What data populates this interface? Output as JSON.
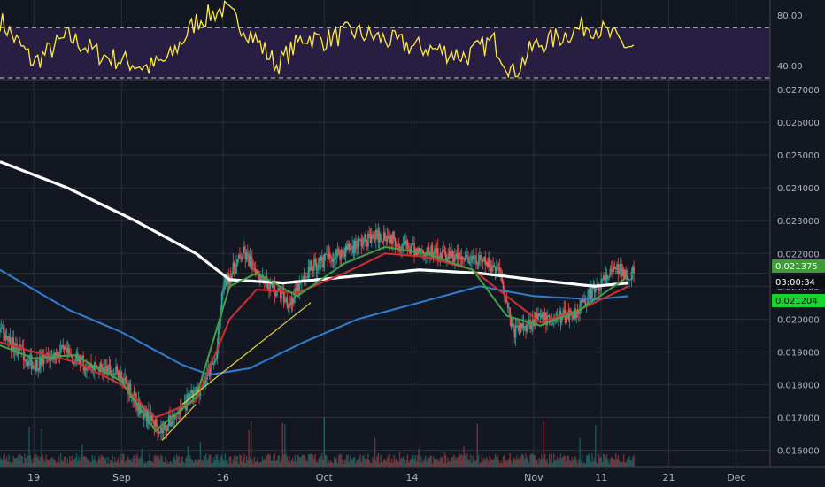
{
  "colors": {
    "background": "#131722",
    "grid": "#2a2e39",
    "axis_text": "#b2b5be",
    "up": "#26a69a",
    "down": "#ef5350",
    "rsi_line": "#ffeb3b",
    "rsi_band": "#2a1f45",
    "ma_white": "#ffffff",
    "ma_blue": "#2f7fd1",
    "ma_red": "#d32f2f",
    "ma_green": "#43a047",
    "horizontal_line": "#6fd63a",
    "trendline": "#e6d33a",
    "price_tag": "#3f9a3a",
    "countdown_tag": "#0b0d12",
    "level_tag": "#16d62c"
  },
  "chart_data": [
    {
      "type": "line",
      "panel": "rsi",
      "ylim": [
        30,
        92
      ],
      "yticks": [
        "80.00",
        "40.00"
      ],
      "y_tick_values": [
        80,
        40
      ],
      "bands": [
        70,
        30
      ],
      "x": [
        "Aug 14",
        "Aug 19",
        "Aug 24",
        "Aug 29",
        "Sep 1",
        "Sep 5",
        "Sep 8",
        "Sep 12",
        "Sep 16",
        "Sep 20",
        "Sep 24",
        "Sep 28",
        "Oct 1",
        "Oct 5",
        "Oct 9",
        "Oct 14",
        "Oct 18",
        "Oct 22",
        "Oct 26",
        "Oct 29",
        "Nov 1",
        "Nov 5",
        "Nov 9",
        "Nov 11",
        "Nov 15"
      ],
      "series": [
        {
          "values": [
            76,
            42,
            63,
            48,
            44,
            38,
            45,
            75,
            85,
            66,
            40,
            63,
            60,
            67,
            62,
            55,
            52,
            47,
            60,
            33,
            55,
            63,
            72,
            68,
            55
          ]
        }
      ]
    },
    {
      "type": "candlestick",
      "panel": "price",
      "ylim": [
        0.0155,
        0.0273
      ],
      "yticks": [
        "0.027000",
        "0.026000",
        "0.025000",
        "0.024000",
        "0.023000",
        "0.022000",
        "0.021000",
        "0.020000",
        "0.019000",
        "0.018000",
        "0.017000",
        "0.016000"
      ],
      "y_tick_values": [
        0.027,
        0.026,
        0.025,
        0.024,
        0.023,
        0.022,
        0.021,
        0.02,
        0.019,
        0.018,
        0.017,
        0.016
      ],
      "xtick_labels": [
        "19",
        "Sep",
        "16",
        "Oct",
        "14",
        "Nov",
        "11",
        "21",
        "Dec"
      ],
      "xtick_dates": [
        "Aug 19",
        "Sep 1",
        "Sep 16",
        "Oct 1",
        "Oct 14",
        "Nov 1",
        "Nov 11",
        "Nov 21",
        "Dec 1"
      ],
      "close_path": {
        "dates": [
          "Aug 14",
          "Aug 19",
          "Aug 23",
          "Aug 27",
          "Sep 1",
          "Sep 4",
          "Sep 7",
          "Sep 10",
          "Sep 13",
          "Sep 15",
          "Sep 16",
          "Sep 19",
          "Sep 23",
          "Sep 26",
          "Sep 29",
          "Oct 3",
          "Oct 7",
          "Oct 10",
          "Oct 14",
          "Oct 18",
          "Oct 22",
          "Oct 25",
          "Oct 27",
          "Oct 29",
          "Nov 1",
          "Nov 4",
          "Nov 7",
          "Nov 10",
          "Nov 13",
          "Nov 15"
        ],
        "values": [
          0.0196,
          0.0186,
          0.019,
          0.0186,
          0.0183,
          0.0172,
          0.0166,
          0.0173,
          0.018,
          0.0188,
          0.021,
          0.022,
          0.021,
          0.0205,
          0.0216,
          0.022,
          0.0224,
          0.0226,
          0.0221,
          0.022,
          0.0218,
          0.0217,
          0.0215,
          0.0196,
          0.02,
          0.02,
          0.0202,
          0.0209,
          0.0215,
          0.0214
        ]
      },
      "current_price": "0.021375",
      "countdown": "03:00:34",
      "marked_level": "0.021204",
      "horizontal_level": 0.021375,
      "moving_averages": [
        {
          "color_key": "ma_white",
          "dates": [
            "Aug 14",
            "Aug 24",
            "Sep 3",
            "Sep 12",
            "Sep 17",
            "Sep 25",
            "Oct 5",
            "Oct 15",
            "Oct 24",
            "Nov 1",
            "Nov 10",
            "Nov 15"
          ],
          "values": [
            0.0248,
            0.024,
            0.023,
            0.022,
            0.0212,
            0.0211,
            0.0213,
            0.0215,
            0.0214,
            0.0212,
            0.021,
            0.0211
          ]
        },
        {
          "color_key": "ma_blue",
          "dates": [
            "Aug 14",
            "Aug 24",
            "Sep 1",
            "Sep 10",
            "Sep 14",
            "Sep 20",
            "Sep 28",
            "Oct 6",
            "Oct 15",
            "Oct 24",
            "Nov 1",
            "Nov 10",
            "Nov 15"
          ],
          "values": [
            0.0215,
            0.0203,
            0.0196,
            0.0186,
            0.0183,
            0.0185,
            0.0193,
            0.02,
            0.0205,
            0.021,
            0.0207,
            0.0206,
            0.0207
          ]
        },
        {
          "color_key": "ma_red",
          "dates": [
            "Aug 14",
            "Aug 19",
            "Aug 25",
            "Sep 1",
            "Sep 6",
            "Sep 12",
            "Sep 17",
            "Sep 21",
            "Sep 27",
            "Oct 4",
            "Oct 10",
            "Oct 16",
            "Oct 23",
            "Oct 28",
            "Nov 2",
            "Nov 8",
            "Nov 15"
          ],
          "values": [
            0.0193,
            0.019,
            0.0187,
            0.018,
            0.017,
            0.0175,
            0.02,
            0.0209,
            0.0208,
            0.0214,
            0.022,
            0.0219,
            0.0215,
            0.0207,
            0.0199,
            0.0203,
            0.021
          ]
        },
        {
          "color_key": "ma_green",
          "dates": [
            "Aug 14",
            "Aug 19",
            "Aug 25",
            "Sep 1",
            "Sep 6",
            "Sep 12",
            "Sep 17",
            "Sep 21",
            "Sep 27",
            "Oct 4",
            "Oct 10",
            "Oct 16",
            "Oct 23",
            "Oct 28",
            "Nov 2",
            "Nov 8",
            "Nov 15"
          ],
          "values": [
            0.0192,
            0.0188,
            0.0189,
            0.0181,
            0.0166,
            0.0176,
            0.021,
            0.0214,
            0.0207,
            0.0217,
            0.0222,
            0.022,
            0.0215,
            0.0201,
            0.0198,
            0.0203,
            0.0213
          ]
        }
      ],
      "trendlines": [
        {
          "dates": [
            "Sep 7",
            "Sep 12"
          ],
          "values": [
            0.0163,
            0.0174
          ]
        },
        {
          "dates": [
            "Sep 10",
            "Sep 29"
          ],
          "values": [
            0.0174,
            0.0205
          ]
        }
      ]
    },
    {
      "type": "bar",
      "panel": "volume",
      "note_colors_by_direction": true
    }
  ]
}
